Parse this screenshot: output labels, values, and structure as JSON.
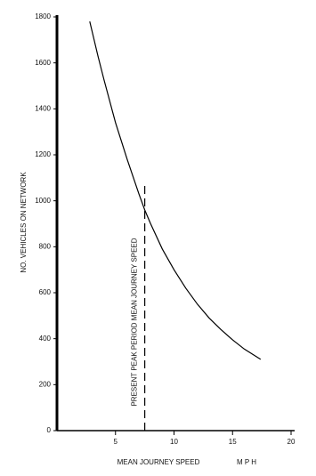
{
  "chart_data": {
    "type": "line",
    "ylabel": "NO. VEHICLES ON NETWORK",
    "xlabel": "MEAN JOURNEY SPEED",
    "xlabel_unit": "M P H",
    "x": [
      2.8,
      3.5,
      4,
      5,
      6,
      7,
      7.5,
      8,
      9,
      10,
      11,
      12,
      13,
      14,
      15,
      16,
      17.4
    ],
    "series": [
      {
        "color": "#000000",
        "values": [
          1780,
          1630,
          1530,
          1340,
          1180,
          1030,
          960,
          900,
          790,
          700,
          620,
          550,
          490,
          440,
          395,
          355,
          310
        ]
      }
    ],
    "xlim": [
      0,
      20
    ],
    "xticks": [
      5,
      10,
      15,
      20
    ],
    "ylim": [
      0,
      1800
    ],
    "yticks": [
      0,
      200,
      400,
      600,
      800,
      1000,
      1200,
      1400,
      1600,
      1800
    ],
    "reference_line": {
      "x": 7.5,
      "y_top": 1080,
      "label": "PRESENT PEAK PERIOD MEAN JOURNEY SPEED"
    }
  }
}
